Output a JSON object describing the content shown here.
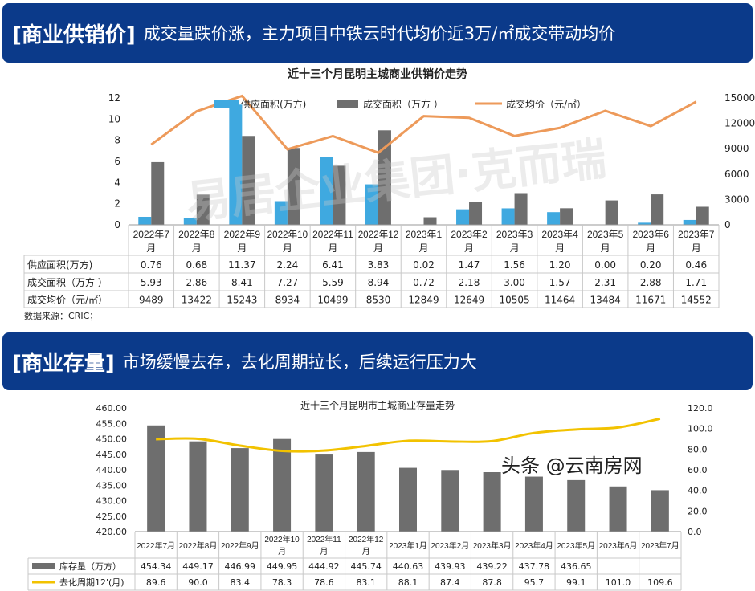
{
  "section1": {
    "tag": "[商业供销价]",
    "subtitle": "成交量跌价涨，主力项目中铁云时代均价近3万/㎡成交带动均价"
  },
  "section2": {
    "tag": "[商业存量]",
    "subtitle": "市场缓慢去存，去化周期拉长，后续运行压力大"
  },
  "watermark": "易居企业集团·克而瑞",
  "corner_watermark": "头条 @云南房网",
  "source": "数据来源：CRIC；",
  "colors": {
    "banner": "#0b3a8a",
    "supply": "#3fa9e0",
    "deal": "#6e6e6e",
    "price": "#ed9a5a",
    "inventory": "#6e6e6e",
    "cycle": "#f2c200"
  },
  "chart_data": [
    {
      "type": "bar",
      "title": "近十三个月昆明主城商业供销价走势",
      "categories": [
        "2022年7月",
        "2022年8月",
        "2022年9月",
        "2022年10月",
        "2022年11月",
        "2022年12月",
        "2023年1月",
        "2023年2月",
        "2023年3月",
        "2023年4月",
        "2023年5月",
        "2023年6月",
        "2023年7月"
      ],
      "y_left": {
        "range": [
          0,
          12
        ],
        "ticks": [
          "0",
          "2",
          "4",
          "6",
          "8",
          "10",
          "12"
        ]
      },
      "y_right": {
        "range": [
          0,
          15000
        ],
        "ticks": [
          "0",
          "3000",
          "6000",
          "9000",
          "12000",
          "15000"
        ]
      },
      "legend_placement": "top",
      "grid": false,
      "series": [
        {
          "name": "供应面积(万方)",
          "type": "bar",
          "axis": "left",
          "values": [
            0.76,
            0.68,
            11.37,
            2.24,
            6.41,
            3.83,
            0.02,
            1.47,
            1.56,
            1.2,
            0.0,
            0.2,
            0.46
          ],
          "labels": [
            "0.76",
            "0.68",
            "11.37",
            "2.24",
            "6.41",
            "3.83",
            "0.02",
            "1.47",
            "1.56",
            "1.20",
            "0.00",
            "0.20",
            "0.46"
          ]
        },
        {
          "name": "成交面积（万方 ）",
          "type": "bar",
          "axis": "left",
          "values": [
            5.93,
            2.86,
            8.41,
            7.27,
            5.59,
            8.94,
            0.72,
            2.18,
            3.0,
            1.57,
            2.31,
            2.88,
            1.71
          ],
          "labels": [
            "5.93",
            "2.86",
            "8.41",
            "7.27",
            "5.59",
            "8.94",
            "0.72",
            "2.18",
            "3.00",
            "1.57",
            "2.31",
            "2.88",
            "1.71"
          ]
        },
        {
          "name": "成交均价（元/㎡）",
          "type": "line",
          "axis": "right",
          "values": [
            9489,
            13422,
            15243,
            8934,
            10499,
            8530,
            12849,
            12649,
            10505,
            11464,
            13484,
            11671,
            14552
          ],
          "labels": [
            "9489",
            "13422",
            "15243",
            "8934",
            "10499",
            "8530",
            "12849",
            "12649",
            "10505",
            "11464",
            "13484",
            "11671",
            "14552"
          ]
        }
      ]
    },
    {
      "type": "bar",
      "title": "近十三个月昆明市主城商业存量走势",
      "categories": [
        "2022年7月",
        "2022年8月",
        "2022年9月",
        "2022年10月",
        "2022年11月",
        "2022年12月",
        "2023年1月",
        "2023年2月",
        "2023年3月",
        "2023年4月",
        "2023年5月",
        "2023年6月",
        "2023年7月"
      ],
      "y_left": {
        "range": [
          420,
          460
        ],
        "ticks": [
          "420.00",
          "425.00",
          "430.00",
          "435.00",
          "440.00",
          "445.00",
          "450.00",
          "455.00",
          "460.00"
        ]
      },
      "y_right": {
        "range": [
          0,
          120
        ],
        "ticks": [
          "0.0",
          "20.0",
          "40.0",
          "60.0",
          "80.0",
          "100.0",
          "120.0"
        ]
      },
      "legend_placement": "table",
      "grid": false,
      "series": [
        {
          "name": "库存量（万方）",
          "type": "bar",
          "axis": "left",
          "values": [
            454.34,
            449.17,
            446.99,
            449.95,
            444.92,
            445.74,
            440.63,
            439.93,
            439.22,
            437.78,
            436.65,
            434.6,
            433.4
          ],
          "labels": [
            "454.34",
            "449.17",
            "446.99",
            "449.95",
            "444.92",
            "445.74",
            "440.63",
            "439.93",
            "439.22",
            "437.78",
            "436.65",
            "",
            ""
          ]
        },
        {
          "name": "去化周期12'(月)",
          "type": "line",
          "smooth": true,
          "axis": "right",
          "values": [
            89.6,
            90.0,
            83.4,
            78.3,
            78.6,
            83.1,
            88.1,
            87.4,
            87.8,
            95.7,
            99.1,
            101.0,
            109.6
          ],
          "labels": [
            "89.6",
            "90.0",
            "83.4",
            "78.3",
            "78.6",
            "83.1",
            "88.1",
            "87.4",
            "87.8",
            "95.7",
            "99.1",
            "101.0",
            "109.6"
          ]
        }
      ]
    }
  ]
}
